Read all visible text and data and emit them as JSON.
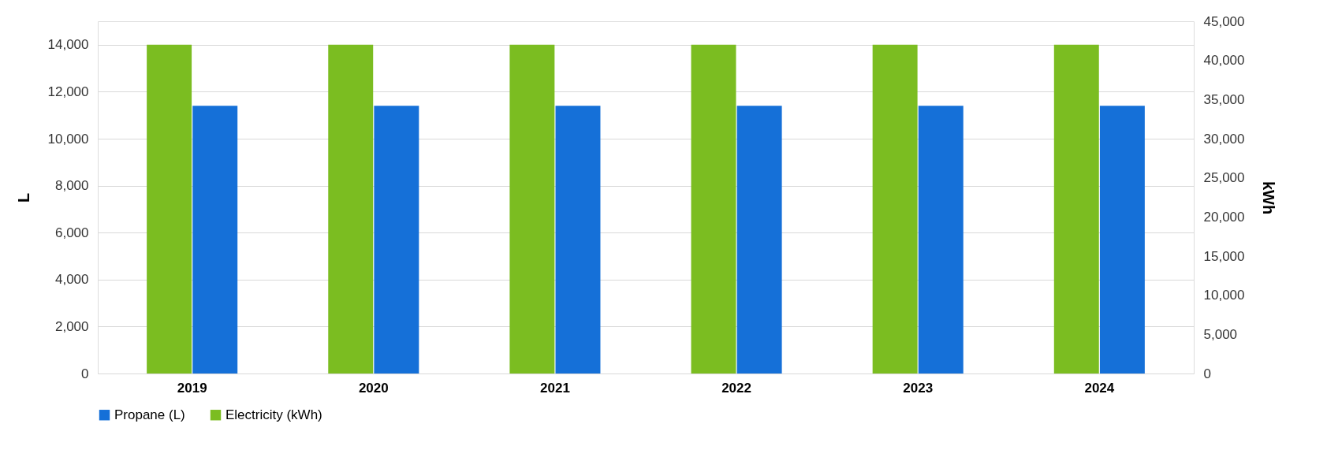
{
  "chart_data": {
    "type": "bar",
    "categories": [
      "2019",
      "2020",
      "2021",
      "2022",
      "2023",
      "2024"
    ],
    "series": [
      {
        "name": "Propane (L)",
        "color": "#1570d8",
        "values": [
          11400,
          11400,
          11400,
          11400,
          11400,
          11400
        ]
      },
      {
        "name": "Electricity (kWh)",
        "color": "#7bbd21",
        "axis": "y2",
        "values": [
          42000,
          42000,
          42000,
          42000,
          42000,
          42000
        ]
      }
    ],
    "ylabel": "L",
    "y2label": "kWh",
    "ylim": [
      0,
      15000
    ],
    "yticks": [
      0,
      {
        "value": 2000,
        "label": "2,000"
      },
      {
        "value": 4000,
        "label": "4,000"
      },
      {
        "value": 6000,
        "label": "6,000"
      },
      {
        "value": 8000,
        "label": "8,000"
      },
      {
        "value": 10000,
        "label": "10,000"
      },
      {
        "value": 12000,
        "label": "12,000"
      },
      {
        "value": 14000,
        "label": "14,000"
      }
    ],
    "y2lim": [
      0,
      45000
    ],
    "y2ticks": [
      0,
      {
        "value": 5000,
        "label": "5,000"
      },
      {
        "value": 10000,
        "label": "10,000"
      },
      {
        "value": 15000,
        "label": "15,000"
      },
      {
        "value": 20000,
        "label": "20,000"
      },
      {
        "value": 25000,
        "label": "25,000"
      },
      {
        "value": 30000,
        "label": "30,000"
      },
      {
        "value": 35000,
        "label": "35,000"
      },
      {
        "value": 40000,
        "label": "40,000"
      },
      {
        "value": 45000,
        "label": "45,000"
      }
    ],
    "grid": "y",
    "legend": "bottom"
  }
}
